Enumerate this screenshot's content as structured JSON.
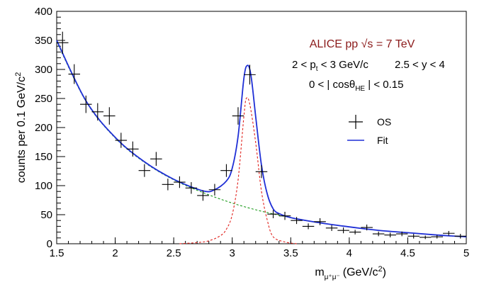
{
  "chart_data": {
    "type": "scatter",
    "title": "",
    "xlabel": {
      "base": "m",
      "sub": "μ⁺μ⁻",
      "unit": "(GeV/c",
      "unit_sup": "2",
      "unit_close": ")"
    },
    "ylabel": {
      "text": "counts per 0.1 GeV/c",
      "sup": "2"
    },
    "xlim": [
      1.5,
      5.0
    ],
    "ylim": [
      0,
      400
    ],
    "x_ticks": [
      "1.5",
      "2",
      "2.5",
      "3",
      "3.5",
      "4",
      "4.5",
      "5"
    ],
    "x_tick_values": [
      1.5,
      2,
      2.5,
      3,
      3.5,
      4,
      4.5,
      5
    ],
    "y_ticks": [
      "0",
      "50",
      "100",
      "150",
      "200",
      "250",
      "300",
      "350",
      "400"
    ],
    "y_tick_values": [
      0,
      50,
      100,
      150,
      200,
      250,
      300,
      350,
      400
    ],
    "annotations": {
      "experiment": "ALICE  pp  √s = 7 TeV",
      "pt_cut": "2 < p",
      "pt_sub": "t",
      "pt_rest": " < 3 GeV/c",
      "y_cut": "2.5 < y < 4",
      "cos_cut": "0 < | cosθ",
      "cos_sub": "HE",
      "cos_rest": " | < 0.15"
    },
    "legend": {
      "position": "right",
      "entries": [
        {
          "label": "OS",
          "style": "data"
        },
        {
          "label": "Fit",
          "style": "line",
          "color": "#1f2fd6"
        }
      ]
    },
    "colors": {
      "data": "#000000",
      "fit": "#1f2fd6",
      "background": "#1a9a1a",
      "signal": "#e0201b",
      "title": "#8b1a1a"
    },
    "series": [
      {
        "name": "OS",
        "style": "points",
        "x": [
          1.55,
          1.65,
          1.75,
          1.85,
          1.95,
          2.05,
          2.15,
          2.25,
          2.35,
          2.45,
          2.55,
          2.65,
          2.75,
          2.85,
          2.95,
          3.05,
          3.15,
          3.25,
          3.35,
          3.45,
          3.55,
          3.65,
          3.75,
          3.85,
          3.95,
          4.05,
          4.15,
          4.25,
          4.35,
          4.45,
          4.55,
          4.65,
          4.75,
          4.85,
          4.95
        ],
        "y": [
          346,
          292,
          240,
          227,
          220,
          178,
          163,
          126,
          146,
          102,
          106,
          96,
          83,
          93,
          126,
          220,
          291,
          124,
          51,
          48,
          40,
          30,
          38,
          27,
          23,
          20,
          28,
          17,
          15,
          17,
          13,
          11,
          12,
          18,
          13
        ],
        "err": [
          19,
          17,
          15,
          15,
          15,
          13,
          13,
          11,
          12,
          10,
          10,
          10,
          9,
          10,
          11,
          15,
          17,
          11,
          7,
          7,
          6,
          5,
          6,
          5,
          5,
          4,
          5,
          4,
          4,
          4,
          4,
          3,
          3,
          4,
          4
        ]
      },
      {
        "name": "",
        "style": "line-dashed",
        "color": "#1a9a1a",
        "x": [
          1.5,
          1.75,
          2.0,
          2.25,
          2.5,
          2.75,
          3.0,
          3.25,
          3.5,
          3.75,
          4.0,
          4.25,
          4.5,
          4.75,
          5.0
        ],
        "y": [
          348,
          245,
          182,
          140,
          110,
          88,
          70,
          56,
          45,
          36,
          29,
          23,
          19,
          15,
          12
        ]
      },
      {
        "name": "",
        "style": "line-dashed",
        "color": "#e0201b",
        "x": [
          2.55,
          2.7,
          2.8,
          2.9,
          2.95,
          3.0,
          3.05,
          3.1,
          3.12,
          3.15,
          3.2,
          3.25,
          3.3,
          3.35,
          3.45,
          3.55
        ],
        "y": [
          0,
          2,
          5,
          14,
          25,
          50,
          110,
          220,
          250,
          240,
          175,
          90,
          40,
          12,
          3,
          0
        ]
      },
      {
        "name": "Fit",
        "style": "line",
        "color": "#1f2fd6",
        "x": [
          1.5,
          1.75,
          2.0,
          2.25,
          2.5,
          2.75,
          2.85,
          2.95,
          3.0,
          3.05,
          3.1,
          3.13,
          3.16,
          3.2,
          3.25,
          3.3,
          3.35,
          3.4,
          3.5,
          3.75,
          4.0,
          4.25,
          4.5,
          4.75,
          5.0
        ],
        "y": [
          350,
          246,
          183,
          141,
          111,
          91,
          93,
          108,
          130,
          185,
          285,
          307,
          290,
          220,
          135,
          85,
          60,
          52,
          45,
          36,
          29,
          23,
          19,
          15,
          12
        ]
      }
    ]
  }
}
